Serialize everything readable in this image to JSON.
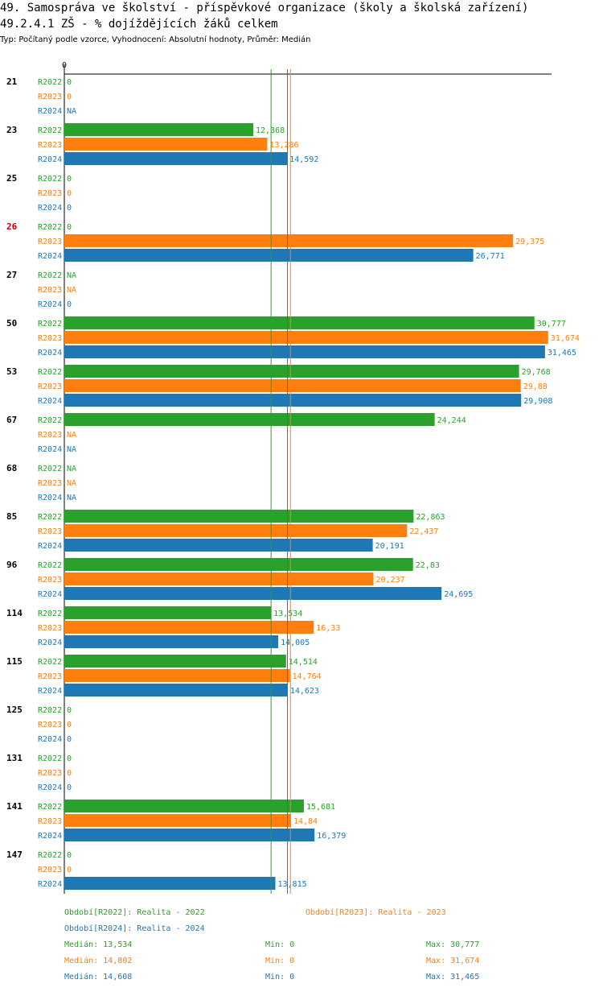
{
  "header": {
    "title": "49. Samospráva ve školství - příspěvkové organizace (školy a školská zařízení)",
    "subtitle": "49.2.4.1 ZŠ - % dojíždějících žáků celkem",
    "info": "Typ: Počítaný podle vzorce, Vyhodnocení: Absolutní hodnoty, Průměr: Medián"
  },
  "chart_data": {
    "type": "bar",
    "orientation": "horizontal",
    "title": "49.2.4.1 ZŠ - % dojíždějících žáků celkem",
    "x_tick_label": "0",
    "xlim": [
      0,
      31.674
    ],
    "series_names": [
      "R2022",
      "R2023",
      "R2024"
    ],
    "colors": {
      "R2022": "#2ca02c",
      "R2023": "#ff7f0e",
      "R2024": "#1f77b4",
      "highlight": "#cc0000"
    },
    "categories": [
      "21",
      "23",
      "25",
      "26",
      "27",
      "50",
      "53",
      "67",
      "68",
      "85",
      "96",
      "114",
      "115",
      "125",
      "131",
      "141",
      "147"
    ],
    "highlight_category": "26",
    "labels": [
      [
        "0",
        "0",
        "NA"
      ],
      [
        "12,368",
        "13,286",
        "14,592"
      ],
      [
        "0",
        "0",
        "0"
      ],
      [
        "0",
        "29,375",
        "26,771"
      ],
      [
        "NA",
        "NA",
        "0"
      ],
      [
        "30,777",
        "31,674",
        "31,465"
      ],
      [
        "29,768",
        "29,88",
        "29,908"
      ],
      [
        "24,244",
        "NA",
        "NA"
      ],
      [
        "NA",
        "NA",
        "NA"
      ],
      [
        "22,863",
        "22,437",
        "20,191"
      ],
      [
        "22,83",
        "20,237",
        "24,695"
      ],
      [
        "13,534",
        "16,33",
        "14,005"
      ],
      [
        "14,514",
        "14,764",
        "14,623"
      ],
      [
        "0",
        "0",
        "0"
      ],
      [
        "0",
        "0",
        "0"
      ],
      [
        "15,681",
        "14,84",
        "16,379"
      ],
      [
        "0",
        "0",
        "13,815"
      ]
    ],
    "values": [
      [
        0,
        0,
        null
      ],
      [
        12.368,
        13.286,
        14.592
      ],
      [
        0,
        0,
        0
      ],
      [
        0,
        29.375,
        26.771
      ],
      [
        null,
        null,
        0
      ],
      [
        30.777,
        31.674,
        31.465
      ],
      [
        29.768,
        29.88,
        29.908
      ],
      [
        24.244,
        null,
        null
      ],
      [
        null,
        null,
        null
      ],
      [
        22.863,
        22.437,
        20.191
      ],
      [
        22.83,
        20.237,
        24.695
      ],
      [
        13.534,
        16.33,
        14.005
      ],
      [
        14.514,
        14.764,
        14.623
      ],
      [
        0,
        0,
        0
      ],
      [
        0,
        0,
        0
      ],
      [
        15.681,
        14.84,
        16.379
      ],
      [
        0,
        0,
        13.815
      ]
    ],
    "median_lines": [
      13.534,
      14.802,
      14.608
    ]
  },
  "legend": {
    "periods": [
      "Období[R2022]: Realita - 2022",
      "Období[R2023]: Realita - 2023",
      "Období[R2024]: Realita - 2024"
    ],
    "stats": [
      {
        "median": "Medián: 13,534",
        "min": "Min: 0",
        "max": "Max: 30,777"
      },
      {
        "median": "Medián: 14,802",
        "min": "Min: 0",
        "max": "Max: 31,674"
      },
      {
        "median": "Medián: 14,608",
        "min": "Min: 0",
        "max": "Max: 31,465"
      }
    ]
  }
}
